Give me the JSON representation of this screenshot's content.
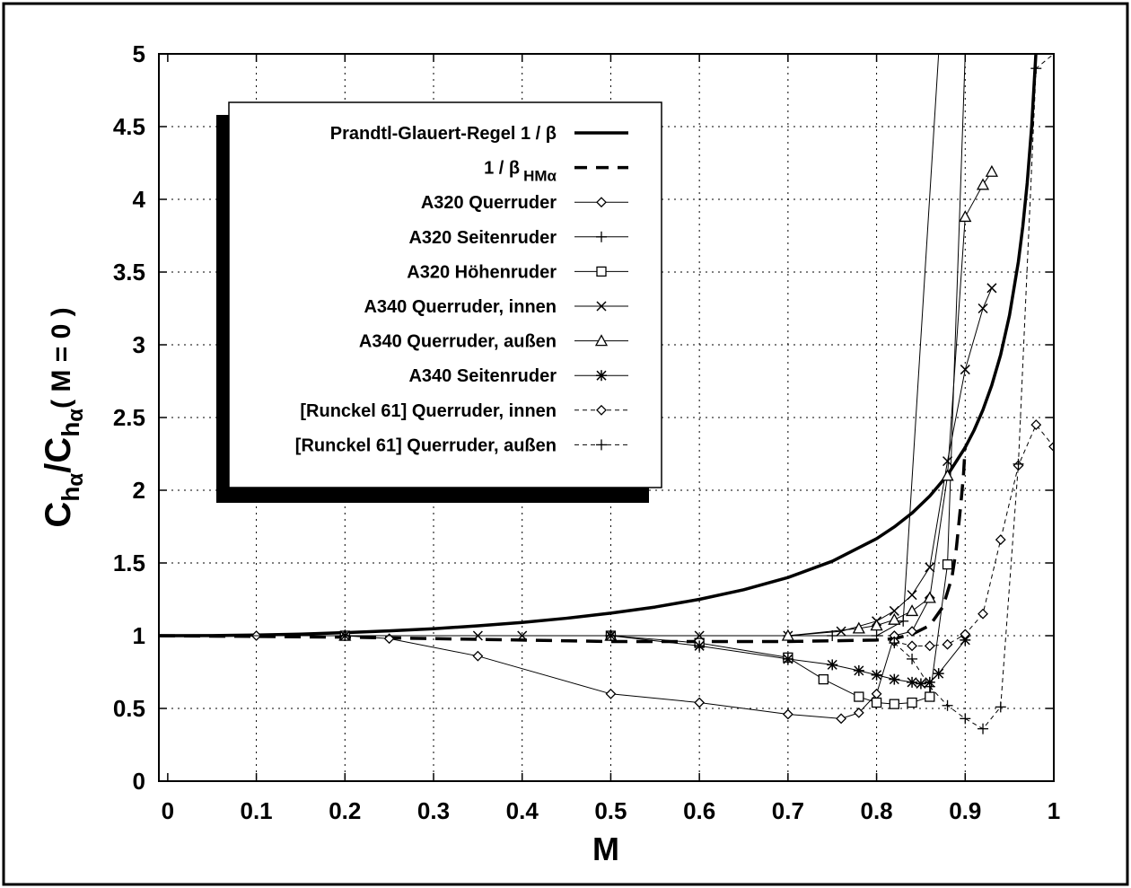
{
  "chart_data": {
    "type": "line",
    "title": "",
    "xlabel": "M",
    "ylabel": "C_hα / C_hα(M = 0)",
    "ylabel_parts": {
      "c1": "C",
      "h1": "h",
      "a1": "α",
      "slash": "/",
      "c2": "C",
      "h2": "h",
      "a2": "α",
      "rest": "( M = 0 )"
    },
    "xlim": [
      -0.01,
      1.0
    ],
    "ylim": [
      0,
      5
    ],
    "grid": true,
    "legend_position": "upper-left",
    "x_ticks": [
      "0",
      "0.1",
      "0.2",
      "0.3",
      "0.4",
      "0.5",
      "0.6",
      "0.7",
      "0.8",
      "0.9",
      "1"
    ],
    "x_tick_values": [
      0,
      0.1,
      0.2,
      0.3,
      0.4,
      0.5,
      0.6,
      0.7,
      0.8,
      0.9,
      1.0
    ],
    "y_ticks": [
      "0",
      "0.5",
      "1",
      "1.5",
      "2",
      "2.5",
      "3",
      "3.5",
      "4",
      "4.5",
      "5"
    ],
    "y_tick_values": [
      0,
      0.5,
      1,
      1.5,
      2,
      2.5,
      3,
      3.5,
      4,
      4.5,
      5
    ],
    "legend_extra": {
      "beta_symbol": "β",
      "hm_subscript": "HMα"
    },
    "series": [
      {
        "name": "Prandtl-Glauert-Regel  1 / β",
        "style": "thick-solid",
        "marker": "none",
        "x": [
          -0.01,
          0.05,
          0.1,
          0.15,
          0.2,
          0.25,
          0.3,
          0.35,
          0.4,
          0.45,
          0.5,
          0.55,
          0.6,
          0.65,
          0.7,
          0.75,
          0.8,
          0.82,
          0.84,
          0.86,
          0.88,
          0.9,
          0.91,
          0.92,
          0.93,
          0.94,
          0.95,
          0.96,
          0.965,
          0.97,
          0.975,
          0.98
        ],
        "y": [
          1.0,
          1.001,
          1.005,
          1.011,
          1.021,
          1.033,
          1.048,
          1.068,
          1.091,
          1.12,
          1.155,
          1.197,
          1.25,
          1.316,
          1.4,
          1.512,
          1.667,
          1.748,
          1.843,
          1.96,
          2.104,
          2.294,
          2.412,
          2.552,
          2.722,
          2.931,
          3.203,
          3.571,
          3.813,
          4.113,
          4.5,
          5.025
        ]
      },
      {
        "name": "1 / β HMα",
        "style": "thick-dashed",
        "marker": "none",
        "x": [
          -0.01,
          0.2,
          0.4,
          0.5,
          0.6,
          0.7,
          0.8,
          0.82,
          0.84,
          0.86,
          0.875,
          0.885,
          0.89,
          0.895,
          0.898,
          0.9
        ],
        "y": [
          1.0,
          0.99,
          0.97,
          0.96,
          0.96,
          0.96,
          0.97,
          0.98,
          1.01,
          1.07,
          1.2,
          1.4,
          1.6,
          1.9,
          2.1,
          2.3
        ]
      },
      {
        "name": "A320 Querruder",
        "style": "thin-solid",
        "marker": "diamond",
        "x": [
          -0.01,
          0.1,
          0.2,
          0.25,
          0.35,
          0.5,
          0.6,
          0.7,
          0.76,
          0.78,
          0.8,
          0.82,
          0.84,
          0.86
        ],
        "y": [
          1.0,
          1.0,
          1.0,
          0.98,
          0.86,
          0.6,
          0.54,
          0.46,
          0.43,
          0.47,
          0.6,
          1.0,
          1.03,
          1.26
        ]
      },
      {
        "name": "A320 Seitenruder",
        "style": "thin-solid",
        "marker": "plus",
        "x": [
          -0.01,
          0.2,
          0.5,
          0.7,
          0.75,
          0.8,
          0.83,
          0.87,
          0.9
        ],
        "y": [
          1.0,
          1.0,
          1.0,
          1.0,
          1.0,
          1.0,
          1.1,
          5.0,
          5.0
        ]
      },
      {
        "name": "A320 Höhenruder",
        "style": "thin-solid",
        "marker": "square",
        "x": [
          -0.01,
          0.2,
          0.5,
          0.6,
          0.7,
          0.74,
          0.78,
          0.8,
          0.82,
          0.84,
          0.86,
          0.88,
          0.9
        ],
        "y": [
          1.0,
          1.0,
          1.0,
          0.95,
          0.85,
          0.7,
          0.58,
          0.54,
          0.53,
          0.54,
          0.58,
          1.49,
          5.0
        ]
      },
      {
        "name": "A340 Querruder, innen",
        "style": "thin-solid",
        "marker": "x",
        "x": [
          -0.01,
          0.2,
          0.35,
          0.4,
          0.5,
          0.6,
          0.7,
          0.76,
          0.8,
          0.82,
          0.84,
          0.86,
          0.88,
          0.9,
          0.92,
          0.93
        ],
        "y": [
          1.0,
          1.0,
          1.0,
          1.0,
          1.0,
          1.0,
          1.0,
          1.03,
          1.1,
          1.17,
          1.28,
          1.47,
          2.2,
          2.83,
          3.25,
          3.39
        ]
      },
      {
        "name": "A340 Querruder, außen",
        "style": "thin-solid",
        "marker": "triangle",
        "x": [
          -0.01,
          0.2,
          0.5,
          0.7,
          0.78,
          0.8,
          0.82,
          0.84,
          0.86,
          0.88,
          0.9,
          0.92,
          0.93
        ],
        "y": [
          1.0,
          1.0,
          1.0,
          1.0,
          1.05,
          1.07,
          1.11,
          1.17,
          1.26,
          2.1,
          3.88,
          4.1,
          4.19
        ]
      },
      {
        "name": "A340 Seitenruder",
        "style": "thin-solid",
        "marker": "asterisk",
        "x": [
          -0.01,
          0.2,
          0.5,
          0.6,
          0.7,
          0.75,
          0.78,
          0.8,
          0.82,
          0.84,
          0.85,
          0.86,
          0.87,
          0.9
        ],
        "y": [
          1.0,
          1.0,
          1.0,
          0.93,
          0.84,
          0.8,
          0.76,
          0.73,
          0.7,
          0.68,
          0.67,
          0.68,
          0.74,
          0.97
        ]
      },
      {
        "name": "[Runckel 61] Querruder, innen",
        "style": "thin-dashed",
        "marker": "diamond",
        "x": [
          0.82,
          0.84,
          0.86,
          0.88,
          0.9,
          0.92,
          0.94,
          0.96,
          0.98,
          1.0
        ],
        "y": [
          0.96,
          0.93,
          0.93,
          0.94,
          1.01,
          1.15,
          1.66,
          2.17,
          2.45,
          2.3
        ]
      },
      {
        "name": "[Runckel 61] Querruder, außen",
        "style": "thin-dashed",
        "marker": "plus",
        "x": [
          0.82,
          0.84,
          0.86,
          0.88,
          0.9,
          0.92,
          0.94,
          0.96,
          0.98,
          1.0
        ],
        "y": [
          0.95,
          0.84,
          0.65,
          0.52,
          0.43,
          0.36,
          0.51,
          2.18,
          4.9,
          5.0
        ]
      }
    ]
  }
}
